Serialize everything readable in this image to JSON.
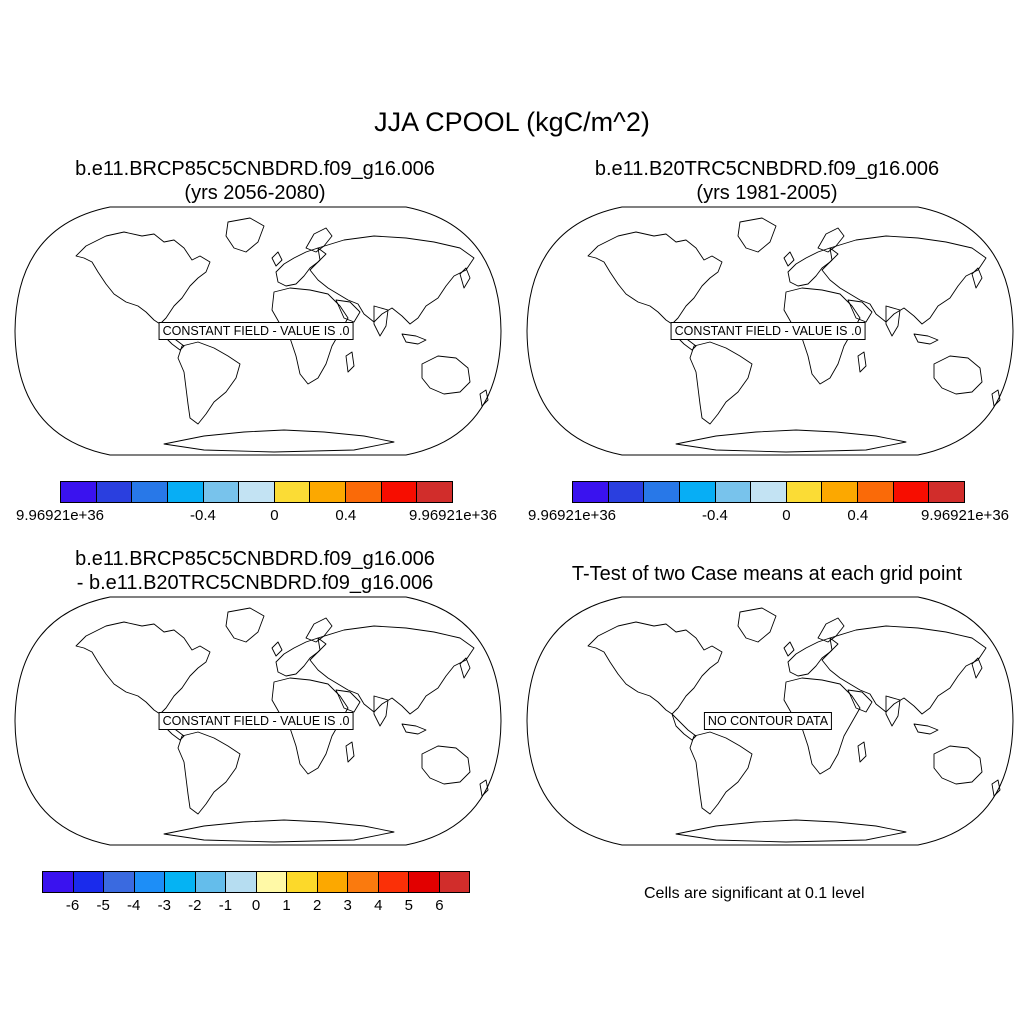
{
  "title": "JJA CPOOL (kgC/m^2)",
  "panels": [
    {
      "title_line1": "b.e11.BRCP85C5CNBDRD.f09_g16.006",
      "title_line2": "(yrs 2056-2080)",
      "label": "CONSTANT FIELD - VALUE IS .0"
    },
    {
      "title_line1": "b.e11.B20TRC5CNBDRD.f09_g16.006",
      "title_line2": "(yrs 1981-2005)",
      "label": "CONSTANT FIELD - VALUE IS .0"
    },
    {
      "title_line1": "b.e11.BRCP85C5CNBDRD.f09_g16.006",
      "title_line2": "- b.e11.B20TRC5CNBDRD.f09_g16.006",
      "label": "CONSTANT FIELD - VALUE IS .0"
    },
    {
      "title_line1": "T-Test of two Case means at each grid point",
      "label": "NO CONTOUR DATA"
    }
  ],
  "colorbars": {
    "case": {
      "colors": [
        "#3a12ef",
        "#2a3fdf",
        "#2878e8",
        "#07aef5",
        "#78c3ec",
        "#c3e3f3",
        "#fbdc35",
        "#fca800",
        "#fa6a08",
        "#f70d00",
        "#d12d2b"
      ],
      "ticks": [
        {
          "label": "9.96921e+36",
          "at": 0
        },
        {
          "label": "-0.4",
          "at": 4
        },
        {
          "label": "0",
          "at": 6
        },
        {
          "label": "0.4",
          "at": 8
        },
        {
          "label": "9.96921e+36",
          "at": 11
        }
      ]
    },
    "diff": {
      "colors": [
        "#3a12ef",
        "#1a2bec",
        "#3a6ae0",
        "#1d8ef7",
        "#05b3f3",
        "#64bdeb",
        "#b6ddf1",
        "#fff9a6",
        "#fcd92a",
        "#fca800",
        "#fa7a0e",
        "#fb3007",
        "#e20000",
        "#d12d2b"
      ],
      "ticks": [
        "-6",
        "-5",
        "-4",
        "-3",
        "-2",
        "-1",
        "0",
        "1",
        "2",
        "3",
        "4",
        "5",
        "6"
      ]
    }
  },
  "significance_note": "Cells are significant at 0.1 level"
}
